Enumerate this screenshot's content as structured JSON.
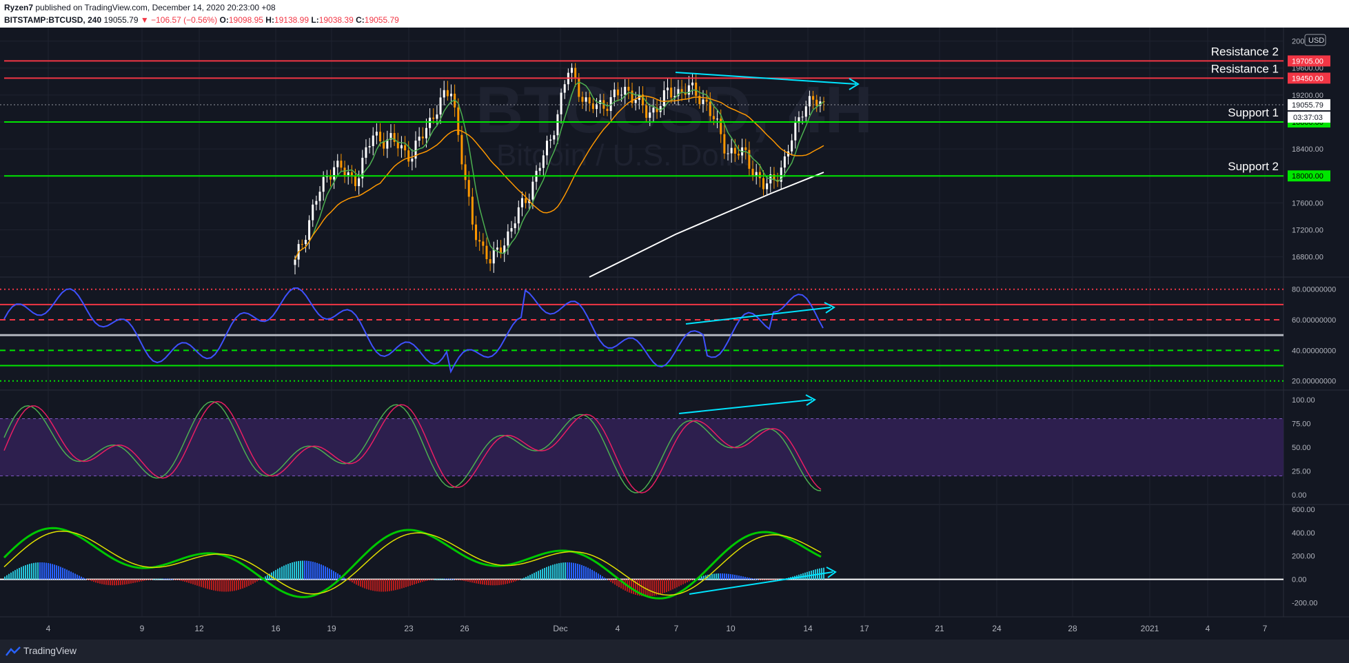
{
  "header": {
    "author": "Ryzen7",
    "publish_text": "published on TradingView.com, December 14, 2020 20:23:00 +08",
    "symbol": "BITSTAMP:BTCUSD, 240",
    "last": "19055.79",
    "change": "−106.57 (−0.56%)",
    "o_label": "O:",
    "o_value": "19098.95",
    "h_label": "H:",
    "h_value": "19138.99",
    "l_label": "L:",
    "l_value": "19038.39",
    "c_label": "C:",
    "c_value": "19055.79"
  },
  "footer": {
    "logo_text": "TradingView"
  },
  "chart_data": {
    "type": "line",
    "watermark": {
      "symbol": "BTCUSD, 4H",
      "name": "Bitcoin / U.S. Dollar"
    },
    "currency": "USD",
    "x_ticks": [
      "4",
      "9",
      "12",
      "16",
      "19",
      "23",
      "26",
      "Dec",
      "4",
      "7",
      "10",
      "14",
      "17",
      "21",
      "24",
      "28",
      "2021",
      "4",
      "7"
    ],
    "colors": {
      "up": "#ffffff",
      "down": "#ff9800",
      "resistance": "#f23645",
      "support": "#00e600",
      "trend": "#00e5ff",
      "ma_fast": "#4caf50",
      "ma_mid": "#ff9800",
      "ma_slow": "#ffffff"
    },
    "price_pane": {
      "y_ticks": [
        20000,
        19600,
        19200,
        18800,
        18400,
        18000,
        17600,
        17200,
        16800
      ],
      "y_range": [
        16500,
        20200
      ],
      "last_price": "19055.79",
      "countdown": "03:37:03",
      "levels": [
        {
          "name": "Resistance 2",
          "value": 19705,
          "label": "19705.00",
          "kind": "resistance"
        },
        {
          "name": "Resistance 1",
          "value": 19450,
          "label": "19450.00",
          "kind": "resistance"
        },
        {
          "name": "Support 1",
          "value": 18800,
          "label": "18800.00",
          "kind": "support"
        },
        {
          "name": "Support 2",
          "value": 18000,
          "label": "18000.00",
          "kind": "support"
        }
      ],
      "price_series": [
        {
          "x": "Nov 17",
          "y": 16700
        },
        {
          "x": "Nov 18",
          "y": 17600
        },
        {
          "x": "Nov 19",
          "y": 18200
        },
        {
          "x": "Nov 20",
          "y": 17900
        },
        {
          "x": "Nov 21",
          "y": 18600
        },
        {
          "x": "Nov 22",
          "y": 18500
        },
        {
          "x": "Nov 23",
          "y": 18300
        },
        {
          "x": "Nov 24",
          "y": 18900
        },
        {
          "x": "Nov 25",
          "y": 19300
        },
        {
          "x": "Nov 26",
          "y": 17300
        },
        {
          "x": "Nov 27",
          "y": 16700
        },
        {
          "x": "Nov 28",
          "y": 17200
        },
        {
          "x": "Nov 29",
          "y": 17800
        },
        {
          "x": "Nov 30",
          "y": 18500
        },
        {
          "x": "Dec 1",
          "y": 19600
        },
        {
          "x": "Dec 2",
          "y": 19000
        },
        {
          "x": "Dec 3",
          "y": 19100
        },
        {
          "x": "Dec 4",
          "y": 19300
        },
        {
          "x": "Dec 5",
          "y": 18900
        },
        {
          "x": "Dec 6",
          "y": 19200
        },
        {
          "x": "Dec 7",
          "y": 19300
        },
        {
          "x": "Dec 8",
          "y": 19100
        },
        {
          "x": "Dec 9",
          "y": 18400
        },
        {
          "x": "Dec 10",
          "y": 18300
        },
        {
          "x": "Dec 11",
          "y": 17800
        },
        {
          "x": "Dec 12",
          "y": 18200
        },
        {
          "x": "Dec 13",
          "y": 19100
        },
        {
          "x": "Dec 14",
          "y": 19055
        }
      ]
    },
    "rsi_pane": {
      "y_ticks": [
        "80.00000000",
        "60.00000000",
        "40.00000000",
        "20.00000000"
      ],
      "levels": [
        80,
        70,
        60,
        50,
        40,
        30,
        20
      ]
    },
    "stoch_pane": {
      "y_ticks": [
        "100.00",
        "75.00",
        "50.00",
        "25.00",
        "0.00"
      ],
      "band": [
        20,
        80
      ]
    },
    "macd_pane": {
      "y_ticks": [
        "600.00",
        "400.00",
        "200.00",
        "0.00",
        "-200.00"
      ]
    }
  }
}
